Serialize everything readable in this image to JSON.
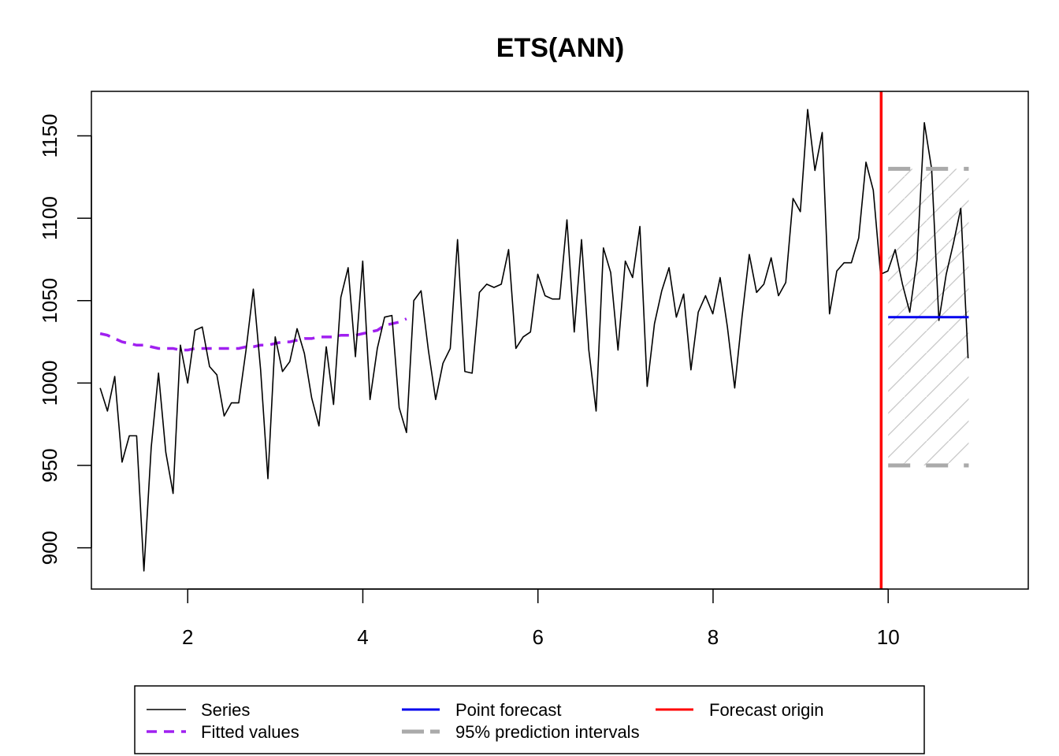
{
  "chart_data": {
    "type": "line",
    "title": "ETS(ANN)",
    "xlabel": "",
    "ylabel": "",
    "xlim": [
      0.9,
      11.6
    ],
    "ylim": [
      875,
      1177
    ],
    "x_ticks": [
      2,
      4,
      6,
      8,
      10
    ],
    "x_tick_labels": [
      "2",
      "4",
      "6",
      "8",
      "10"
    ],
    "y_ticks": [
      900,
      950,
      1000,
      1050,
      1100,
      1150
    ],
    "y_tick_labels": [
      "900",
      "950",
      "1000",
      "1050",
      "1100",
      "1150"
    ],
    "grid": false,
    "legend_position": "bottom",
    "forecast_origin": 9.92,
    "series": {
      "actual": {
        "name": "Series",
        "color": "#000000",
        "x_start": 1.0,
        "x_step": 0.0833,
        "values": [
          997,
          983,
          1004,
          952,
          968,
          968,
          886,
          961,
          1006,
          958,
          933,
          1023,
          1000,
          1032,
          1034,
          1010,
          1005,
          980,
          988,
          988,
          1020,
          1057,
          1008,
          942,
          1028,
          1007,
          1013,
          1033,
          1018,
          991,
          974,
          1022,
          987,
          1052,
          1070,
          1016,
          1074,
          990,
          1021,
          1040,
          1041,
          985,
          970,
          1050,
          1056,
          1020,
          990,
          1012,
          1021,
          1087,
          1007,
          1006,
          1055,
          1060,
          1058,
          1060,
          1081,
          1021,
          1028,
          1031,
          1066,
          1053,
          1051,
          1051,
          1099,
          1031,
          1087,
          1020,
          983,
          1082,
          1067,
          1020,
          1074,
          1064,
          1095,
          998,
          1036,
          1056,
          1070,
          1040,
          1054,
          1008,
          1043,
          1053,
          1042,
          1064,
          1034,
          997,
          1040,
          1078,
          1055,
          1060,
          1076,
          1053,
          1061,
          1112,
          1104,
          1166,
          1129,
          1152,
          1042,
          1068,
          1073,
          1073,
          1088,
          1134,
          1117,
          1066,
          1068,
          1081,
          1060,
          1043,
          1075,
          1158,
          1130,
          1038,
          1066,
          1085,
          1106,
          1015
        ]
      },
      "fitted": {
        "name": "Fitted values",
        "color": "#a020f0",
        "x_start": 1.0,
        "x_step": 0.0833,
        "values": [
          1030,
          1029,
          1027,
          1025,
          1024,
          1023,
          1023,
          1022,
          1021,
          1021,
          1021,
          1020,
          1020,
          1021,
          1021,
          1021,
          1021,
          1021,
          1021,
          1021,
          1022,
          1022,
          1023,
          1023,
          1024,
          1025,
          1025,
          1026,
          1027,
          1027,
          1028,
          1028,
          1028,
          1029,
          1029,
          1029,
          1030,
          1031,
          1032,
          1035,
          1036,
          1037,
          1039
        ]
      },
      "point_forecast": {
        "name": "Point forecast",
        "color": "#0000ee",
        "x": [
          10.0,
          10.92
        ],
        "values": [
          1040,
          1040
        ]
      },
      "prediction_interval": {
        "name": "95% prediction intervals",
        "color": "#aaaaaa",
        "x": [
          10.0,
          10.92
        ],
        "upper": 1130,
        "lower": 950
      },
      "origin": {
        "name": "Forecast origin",
        "color": "#ff0000"
      }
    }
  },
  "legend": {
    "items": [
      {
        "label": "Series"
      },
      {
        "label": "Fitted values"
      },
      {
        "label": "Point forecast"
      },
      {
        "label": "95% prediction intervals"
      },
      {
        "label": "Forecast origin"
      }
    ]
  }
}
